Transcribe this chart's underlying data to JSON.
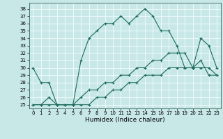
{
  "xlabel": "Humidex (Indice chaleur)",
  "bg_color": "#c8e8e8",
  "grid_color": "#ffffff",
  "line_color": "#1a6b5a",
  "marker": "+",
  "x_ticks": [
    0,
    1,
    2,
    3,
    4,
    5,
    6,
    7,
    8,
    9,
    10,
    11,
    12,
    13,
    14,
    15,
    16,
    17,
    18,
    19,
    20,
    21,
    22,
    23
  ],
  "y_ticks": [
    25,
    26,
    27,
    28,
    29,
    30,
    31,
    32,
    33,
    34,
    35,
    36,
    37,
    38
  ],
  "xlim": [
    -0.5,
    23.5
  ],
  "ylim": [
    24.5,
    38.8
  ],
  "series1": [
    30,
    28,
    28,
    25,
    25,
    25,
    31,
    34,
    35,
    36,
    36,
    37,
    36,
    37,
    38,
    37,
    35,
    35,
    33,
    30,
    30,
    34,
    33,
    30
  ],
  "series2": [
    25,
    25,
    26,
    25,
    25,
    25,
    26,
    27,
    27,
    28,
    28,
    29,
    29,
    30,
    30,
    31,
    31,
    32,
    32,
    32,
    30,
    31,
    29,
    29
  ],
  "series3": [
    25,
    25,
    25,
    25,
    25,
    25,
    25,
    25,
    26,
    26,
    27,
    27,
    28,
    28,
    29,
    29,
    29,
    30,
    30,
    30,
    30,
    30,
    30,
    29
  ]
}
